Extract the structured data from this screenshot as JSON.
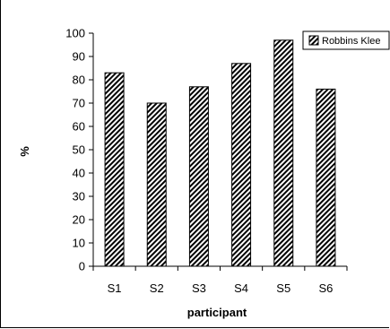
{
  "chart_data": {
    "type": "bar",
    "categories": [
      "S1",
      "S2",
      "S3",
      "S4",
      "S5",
      "S6"
    ],
    "series": [
      {
        "name": "Robbins Klee",
        "values": [
          83,
          70,
          77,
          87,
          97,
          76
        ]
      }
    ],
    "xlabel": "participant",
    "ylabel": "%",
    "ylim": [
      0,
      100
    ],
    "yticks": [
      0,
      10,
      20,
      30,
      40,
      50,
      60,
      70,
      80,
      90,
      100
    ],
    "grid": false,
    "legend_position": "top-right",
    "bar_pattern": "diagonal-hatch",
    "colors": {
      "bar_fill": "#ffffff",
      "hatch": "#000000",
      "axis": "#000000"
    }
  }
}
